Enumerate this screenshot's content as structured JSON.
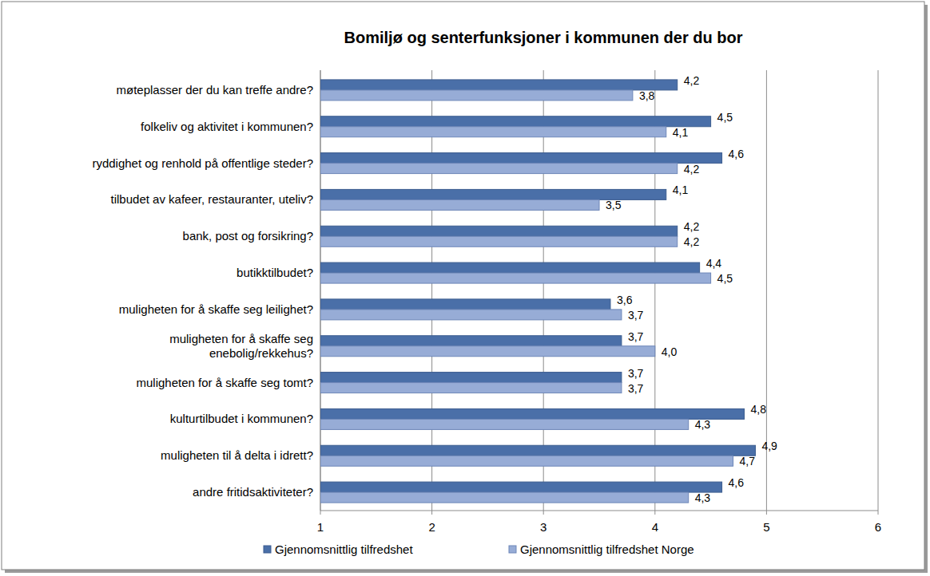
{
  "chart_data": {
    "type": "bar",
    "orientation": "horizontal",
    "title": "Bomiljø og senterfunksjoner i kommunen der du bor",
    "categories": [
      "møteplasser der du kan treffe andre?",
      "folkeliv og aktivitet i kommunen?",
      "ryddighet og renhold på offentlige steder?",
      "tilbudet av kafeer, restauranter, uteliv?",
      "bank, post og forsikring?",
      "butikktilbudet?",
      "muligheten for å skaffe seg leilighet?",
      "muligheten for å skaffe seg\nenebolig/rekkehus?",
      "muligheten for å skaffe seg tomt?",
      "kulturtilbudet i kommunen?",
      "muligheten til å delta i idrett?",
      "andre fritidsaktiviteter?"
    ],
    "series": [
      {
        "name": "Gjennomsnittlig tilfredshet",
        "color": "#4a6fa8",
        "values": [
          4.2,
          4.5,
          4.6,
          4.1,
          4.2,
          4.4,
          3.6,
          3.7,
          3.7,
          4.8,
          4.9,
          4.6
        ],
        "value_labels": [
          "4,2",
          "4,5",
          "4,6",
          "4,1",
          "4,2",
          "4,4",
          "3,6",
          "3,7",
          "3,7",
          "4,8",
          "4,9",
          "4,6"
        ]
      },
      {
        "name": "Gjennomsnittlig tilfredshet Norge",
        "color": "#97acd6",
        "values": [
          3.8,
          4.1,
          4.2,
          3.5,
          4.2,
          4.5,
          3.7,
          4.0,
          3.7,
          4.3,
          4.7,
          4.3
        ],
        "value_labels": [
          "3,8",
          "4,1",
          "4,2",
          "3,5",
          "4,2",
          "4,5",
          "3,7",
          "4,0",
          "3,7",
          "4,3",
          "4,7",
          "4,3"
        ]
      }
    ],
    "xlim": [
      1,
      6
    ],
    "xticks": [
      1,
      2,
      3,
      4,
      5,
      6
    ],
    "grid": true,
    "data_labels": true,
    "legend": "bottom"
  }
}
